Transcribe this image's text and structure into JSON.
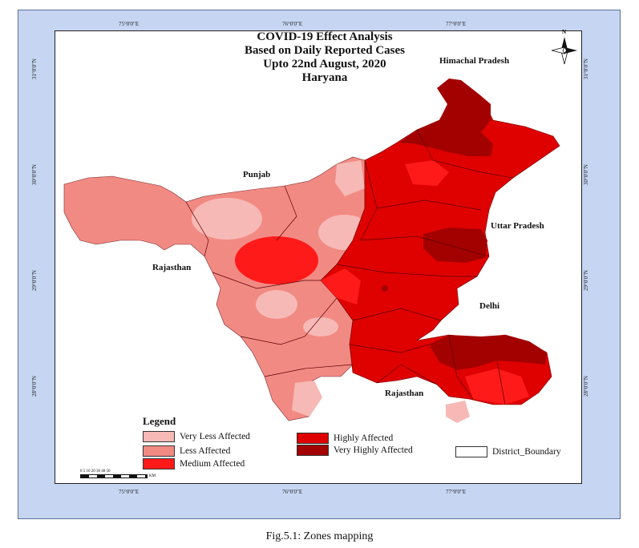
{
  "title": {
    "line1": "COVID-19  Effect Analysis",
    "line2": "Based on Daily Reported Cases",
    "line3": "Upto 22nd August, 2020",
    "line4": "Haryana"
  },
  "graticule": {
    "top": [
      "75°0'0\"E",
      "76°0'0\"E",
      "77°0'0\"E"
    ],
    "bottom": [
      "75°0'0\"E",
      "76°0'0\"E",
      "77°0'0\"E"
    ],
    "left": [
      "31°0'0\"N",
      "30°0'0\"N",
      "29°0'0\"N",
      "28°0'0\"N"
    ],
    "right": [
      "31°0'0\"N",
      "30°0'0\"N",
      "29°0'0\"N",
      "28°0'0\"N"
    ]
  },
  "places": {
    "himachal": "Himachal Pradesh",
    "punjab": "Punjab",
    "uttar_pradesh": "Uttar Pradesh",
    "rajasthan_west": "Rajasthan",
    "delhi": "Delhi",
    "rajasthan_south": "Rajasthan"
  },
  "north_arrow": {
    "label": "N",
    "icon": "north-arrow-icon"
  },
  "legend": {
    "title": "Legend",
    "items": [
      {
        "label": "Very Less Affected",
        "color": "#f7b9b5"
      },
      {
        "label": "Less Affected",
        "color": "#f28a84"
      },
      {
        "label": "Medium Affected",
        "color": "#ff1a1a"
      },
      {
        "label": "Highly Affected",
        "color": "#df0000"
      },
      {
        "label": "Very Highly Affected",
        "color": "#a30000"
      },
      {
        "label": "District_Boundary",
        "color": "#ffffff"
      }
    ]
  },
  "scale_bar": {
    "ticks": "0  5  10    20    30    40    50",
    "unit": "KM"
  },
  "caption": "Fig.5.1: Zones mapping",
  "colors": {
    "frame": "#c6d6f2",
    "very_less": "#f7b9b5",
    "less": "#f28a84",
    "medium": "#ff1a1a",
    "high": "#df0000",
    "very_high": "#a30000"
  }
}
